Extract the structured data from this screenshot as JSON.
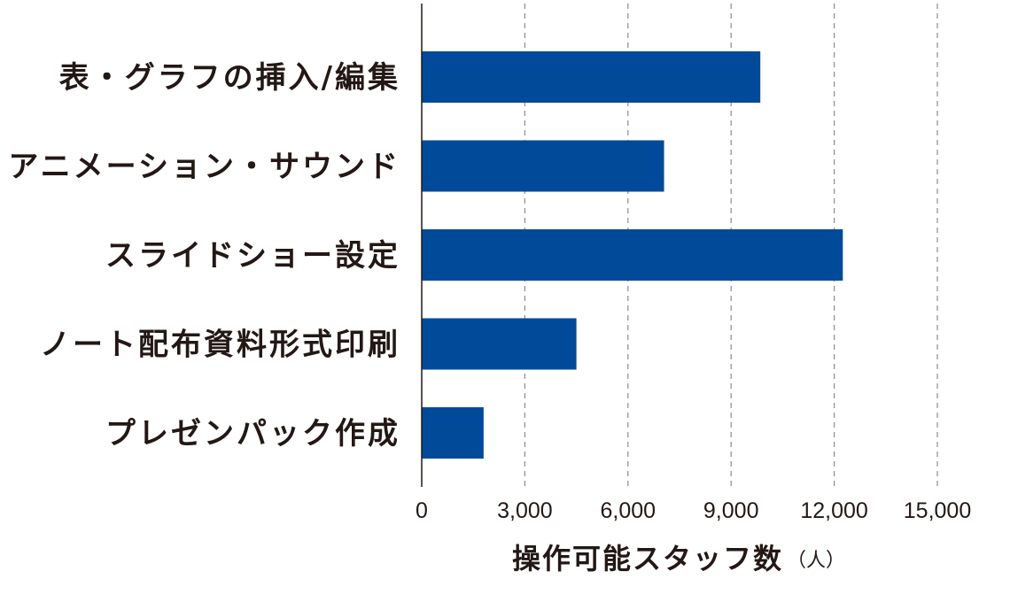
{
  "chart_data": {
    "type": "bar",
    "orientation": "horizontal",
    "categories": [
      "表・グラフの挿入/編集",
      "アニメーション・サウンド",
      "スライドショー設定",
      "ノート配布資料形式印刷",
      "プレゼンパック作成"
    ],
    "values": [
      9850,
      7050,
      12250,
      4500,
      1800
    ],
    "title": "",
    "xlabel": "操作可能スタッフ数",
    "xlabel_unit": "（人）",
    "ylabel": "",
    "xlim": [
      0,
      15000
    ],
    "xticks": [
      0,
      3000,
      6000,
      9000,
      12000,
      15000
    ],
    "xtick_labels": [
      "0",
      "3,000",
      "6,000",
      "9,000",
      "12,000",
      "15,000"
    ],
    "grid": "vertical-dashed",
    "legend": "none",
    "bar_color": "#004a99",
    "axis_color": "#231815",
    "grid_color": "#8c8c8c"
  }
}
